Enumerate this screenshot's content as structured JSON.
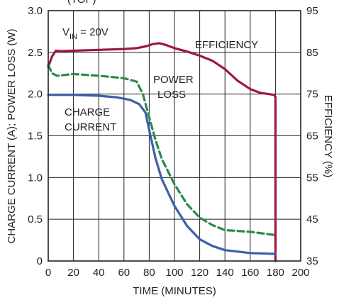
{
  "chart_data": {
    "type": "line",
    "title_fragment": "(TOP)",
    "annotation": {
      "vin_prefix": "V",
      "vin_sub": "IN",
      "vin_value": " = 20V"
    },
    "xlabel": "TIME (MINUTES)",
    "ylabel_left": "CHARGE CURRENT (A); POWER LOSS (W)",
    "ylabel_right": "EFFICIENCY (%)",
    "xlim": [
      0,
      200
    ],
    "ylim_left": [
      0,
      3.0
    ],
    "ylim_right": [
      35,
      95
    ],
    "x_ticks": [
      "0",
      "20",
      "40",
      "60",
      "80",
      "100",
      "120",
      "140",
      "160",
      "180",
      "200"
    ],
    "y_left_ticks": [
      "0",
      "0.5",
      "1.0",
      "1.5",
      "2.0",
      "2.5",
      "3.0"
    ],
    "y_right_ticks": [
      "35",
      "45",
      "55",
      "65",
      "75",
      "85",
      "95"
    ],
    "grid": true,
    "series": [
      {
        "name": "EFFICIENCY",
        "label_lines": [
          "EFFICIENCY"
        ],
        "axis": "right",
        "color": "#9d1a3c",
        "style": "solid",
        "points": [
          [
            0,
            81.5
          ],
          [
            3,
            84
          ],
          [
            6,
            85.4
          ],
          [
            10,
            85.3
          ],
          [
            20,
            85.4
          ],
          [
            40,
            85.6
          ],
          [
            60,
            85.8
          ],
          [
            70,
            86.0
          ],
          [
            78,
            86.5
          ],
          [
            83,
            87.0
          ],
          [
            88,
            87.2
          ],
          [
            93,
            86.8
          ],
          [
            100,
            86.0
          ],
          [
            110,
            85.2
          ],
          [
            120,
            84.2
          ],
          [
            130,
            83.0
          ],
          [
            140,
            81.0
          ],
          [
            150,
            78.2
          ],
          [
            160,
            76.2
          ],
          [
            168,
            75.3
          ],
          [
            175,
            75.0
          ],
          [
            179,
            74.8
          ],
          [
            180,
            74.3
          ],
          [
            180,
            35
          ]
        ]
      },
      {
        "name": "POWER LOSS",
        "label_lines": [
          "POWER",
          "LOSS"
        ],
        "axis": "left",
        "color": "#2c8a4a",
        "style": "dashed",
        "points": [
          [
            0,
            2.35
          ],
          [
            3,
            2.25
          ],
          [
            7,
            2.22
          ],
          [
            20,
            2.24
          ],
          [
            40,
            2.22
          ],
          [
            60,
            2.19
          ],
          [
            70,
            2.15
          ],
          [
            75,
            2.0
          ],
          [
            80,
            1.72
          ],
          [
            85,
            1.45
          ],
          [
            90,
            1.22
          ],
          [
            100,
            0.92
          ],
          [
            110,
            0.68
          ],
          [
            120,
            0.52
          ],
          [
            130,
            0.43
          ],
          [
            140,
            0.37
          ],
          [
            160,
            0.35
          ],
          [
            175,
            0.32
          ],
          [
            180,
            0.31
          ]
        ]
      },
      {
        "name": "CHARGE CURRENT",
        "label_lines": [
          "CHARGE",
          "CURRENT"
        ],
        "axis": "left",
        "color": "#3d5fab",
        "style": "solid",
        "points": [
          [
            0,
            1.99
          ],
          [
            20,
            1.99
          ],
          [
            40,
            1.98
          ],
          [
            55,
            1.96
          ],
          [
            65,
            1.93
          ],
          [
            72,
            1.88
          ],
          [
            77,
            1.78
          ],
          [
            80,
            1.57
          ],
          [
            85,
            1.23
          ],
          [
            90,
            0.98
          ],
          [
            100,
            0.66
          ],
          [
            110,
            0.42
          ],
          [
            120,
            0.26
          ],
          [
            130,
            0.18
          ],
          [
            140,
            0.13
          ],
          [
            160,
            0.095
          ],
          [
            180,
            0.085
          ]
        ]
      }
    ]
  }
}
